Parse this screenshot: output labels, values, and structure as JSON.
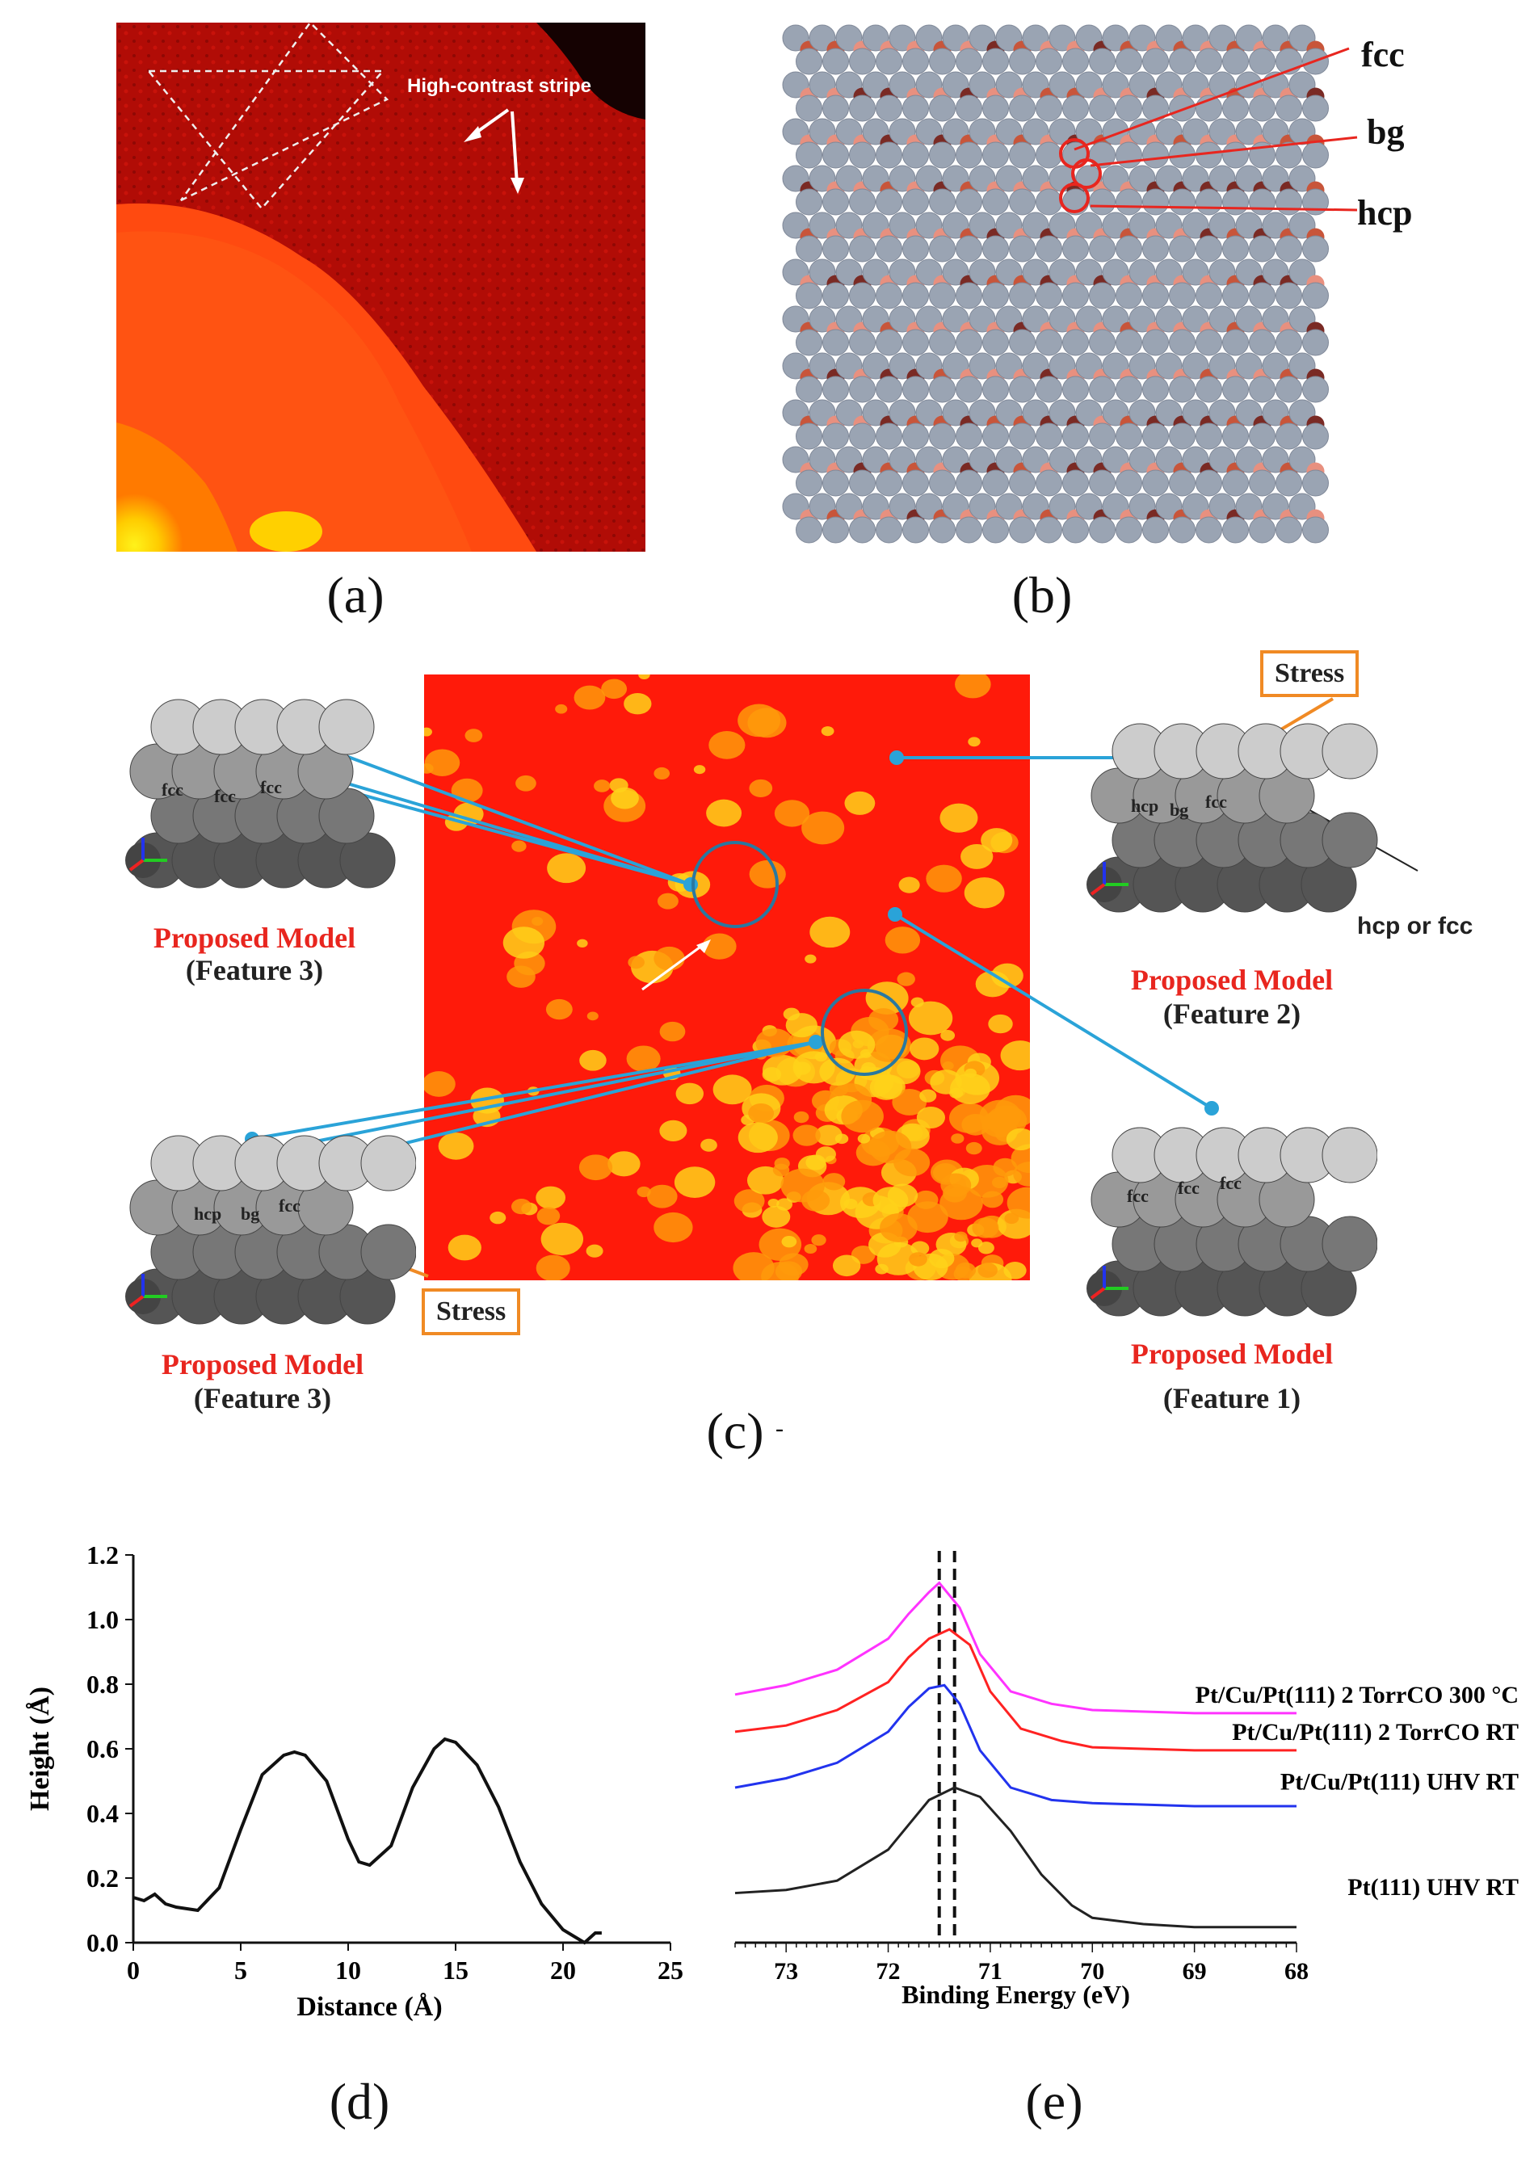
{
  "panels": {
    "a": {
      "label": "(a)",
      "annotation": "High-contrast stripe"
    },
    "b": {
      "label": "(b)",
      "sites": [
        "fcc",
        "bg",
        "hcp"
      ]
    },
    "c": {
      "label": "(c)",
      "label_suffix": "-",
      "models": [
        {
          "title": "Proposed Model",
          "feature": "(Feature 3)",
          "sites": [
            "fcc",
            "fcc",
            "fcc"
          ]
        },
        {
          "title": "Proposed Model",
          "feature": "(Feature 2)",
          "sites": [
            "hcp",
            "bg",
            "fcc"
          ],
          "extra": "hcp or fcc",
          "stress": "Stress"
        },
        {
          "title": "Proposed Model",
          "feature": "(Feature 3)",
          "sites": [
            "hcp",
            "bg",
            "fcc"
          ],
          "stress": "Stress"
        },
        {
          "title": "Proposed Model",
          "feature": "(Feature 1)",
          "sites": [
            "fcc",
            "fcc",
            "fcc"
          ]
        }
      ],
      "colors": {
        "connector": "#2aa3d8",
        "stress": "#f08a24",
        "title": "#e8261f"
      }
    },
    "d": {
      "label": "(d)"
    },
    "e": {
      "label": "(e)"
    }
  },
  "chart_data": [
    {
      "type": "line",
      "panel": "d",
      "xlabel": "Distance (Å)",
      "ylabel": "Height (Å)",
      "xlim": [
        0,
        25
      ],
      "ylim": [
        0,
        1.2
      ],
      "xticks": [
        "0",
        "5",
        "10",
        "15",
        "20",
        "25"
      ],
      "yticks": [
        "0.0",
        "0.2",
        "0.4",
        "0.6",
        "0.8",
        "1.0",
        "1.2"
      ],
      "series": [
        {
          "color": "#111111",
          "x": [
            0,
            0.5,
            1,
            1.5,
            2,
            3,
            4,
            5,
            6,
            7,
            7.5,
            8,
            9,
            10,
            10.5,
            11,
            11.5,
            12,
            13,
            14,
            14.5,
            15,
            16,
            17,
            18,
            19,
            20,
            20.5,
            21,
            21.5,
            21.8
          ],
          "y": [
            0.14,
            0.13,
            0.15,
            0.12,
            0.11,
            0.1,
            0.17,
            0.35,
            0.52,
            0.58,
            0.59,
            0.58,
            0.5,
            0.32,
            0.25,
            0.24,
            0.27,
            0.3,
            0.48,
            0.6,
            0.63,
            0.62,
            0.55,
            0.42,
            0.25,
            0.12,
            0.04,
            0.02,
            0.0,
            0.03,
            0.03
          ]
        }
      ]
    },
    {
      "type": "line",
      "panel": "e",
      "xlabel": "Binding Energy (eV)",
      "xlim": [
        73.5,
        68
      ],
      "xticks": [
        "73",
        "72",
        "71",
        "70",
        "69",
        "68"
      ],
      "reversed_x": true,
      "dashed_lines": [
        71.5,
        71.35
      ],
      "series": [
        {
          "name": "Pt/Cu/Pt(111) 2 TorrCO 300 °C",
          "color": "#ff33ff",
          "x": [
            73.5,
            73,
            72.5,
            72,
            71.8,
            71.6,
            71.5,
            71.3,
            71.1,
            70.8,
            70.4,
            70,
            69,
            68
          ],
          "y": [
            0.8,
            0.83,
            0.88,
            0.98,
            1.06,
            1.13,
            1.16,
            1.08,
            0.93,
            0.81,
            0.77,
            0.75,
            0.74,
            0.74
          ]
        },
        {
          "name": "Pt/Cu/Pt(111) 2 TorrCO RT",
          "color": "#ff2222",
          "x": [
            73.5,
            73,
            72.5,
            72,
            71.8,
            71.6,
            71.4,
            71.2,
            71.0,
            70.7,
            70.3,
            70,
            69,
            68
          ],
          "y": [
            0.68,
            0.7,
            0.75,
            0.84,
            0.92,
            0.98,
            1.01,
            0.96,
            0.81,
            0.69,
            0.65,
            0.63,
            0.62,
            0.62
          ]
        },
        {
          "name": "Pt/Cu/Pt(111) UHV RT",
          "color": "#2233ee",
          "x": [
            73.5,
            73,
            72.5,
            72,
            71.8,
            71.6,
            71.45,
            71.3,
            71.1,
            70.8,
            70.4,
            70,
            69,
            68
          ],
          "y": [
            0.5,
            0.53,
            0.58,
            0.68,
            0.76,
            0.82,
            0.83,
            0.77,
            0.62,
            0.5,
            0.46,
            0.45,
            0.44,
            0.44
          ]
        },
        {
          "name": "Pt(111) UHV RT",
          "color": "#222222",
          "x": [
            73.5,
            73,
            72.5,
            72,
            71.8,
            71.6,
            71.35,
            71.1,
            70.8,
            70.5,
            70.2,
            70,
            69.5,
            69,
            68
          ],
          "y": [
            0.16,
            0.17,
            0.2,
            0.3,
            0.38,
            0.46,
            0.5,
            0.47,
            0.36,
            0.22,
            0.12,
            0.08,
            0.06,
            0.05,
            0.05
          ]
        }
      ]
    }
  ]
}
